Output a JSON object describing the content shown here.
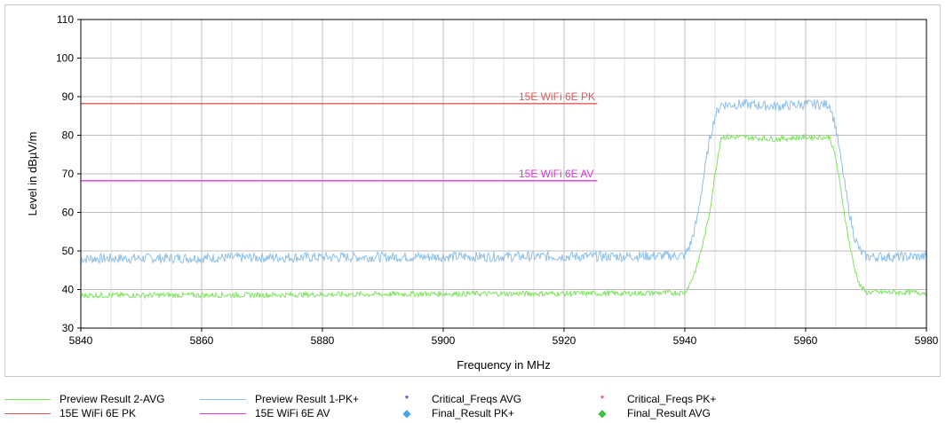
{
  "chart_data": {
    "type": "line",
    "xlabel": "Frequency in MHz",
    "ylabel": "Level in dBµV/m",
    "xlim": [
      5840,
      5980
    ],
    "ylim": [
      30,
      110
    ],
    "x_ticks": [
      "5840",
      "5860",
      "5880",
      "5900",
      "5920",
      "5940",
      "5960",
      "5980"
    ],
    "y_ticks": [
      "30",
      "40",
      "50",
      "60",
      "70",
      "80",
      "90",
      "100",
      "110"
    ],
    "grid": true,
    "legend_position": "bottom",
    "series": [
      {
        "name": "Preview Result 1-PK+",
        "color": "#8ec0ea",
        "x": [
          5840,
          5870,
          5900,
          5930,
          5940,
          5941,
          5942,
          5943,
          5944,
          5945,
          5946,
          5950,
          5955,
          5960,
          5964,
          5965,
          5966,
          5967,
          5968,
          5969,
          5970,
          5980
        ],
        "y": [
          48,
          48.3,
          48.5,
          48.6,
          48.8,
          52,
          58,
          68,
          78,
          85,
          88,
          88,
          87.5,
          88,
          88,
          82,
          72,
          62,
          54,
          50,
          48.5,
          48.5
        ]
      },
      {
        "name": "Preview Result 2-AVG",
        "color": "#7ee45e",
        "x": [
          5840,
          5870,
          5900,
          5930,
          5940,
          5941,
          5942,
          5943,
          5944,
          5945,
          5946,
          5950,
          5955,
          5960,
          5964,
          5965,
          5966,
          5967,
          5968,
          5969,
          5970,
          5980
        ],
        "y": [
          38.5,
          38.6,
          38.9,
          39,
          39.2,
          42,
          46,
          52,
          59,
          70,
          79.5,
          79.5,
          79,
          79.5,
          79.5,
          74,
          64,
          54,
          46,
          41,
          39.3,
          39.2
        ]
      },
      {
        "name": "15E WiFi 6E PK",
        "color": "#e05a5a",
        "x": [
          5840,
          5925.5
        ],
        "y": [
          88.2,
          88.2
        ]
      },
      {
        "name": "15E WiFi 6E AV",
        "color": "#d63ad6",
        "x": [
          5840,
          5925.5
        ],
        "y": [
          68.2,
          68.2
        ]
      }
    ],
    "limit_labels": [
      {
        "text": "15E WiFi 6E PK",
        "x": 5912.5,
        "y": 88.2,
        "color": "#e05a5a"
      },
      {
        "text": "15E WiFi 6E AV",
        "x": 5912.5,
        "y": 68.2,
        "color": "#d63ad6"
      }
    ]
  },
  "legend": {
    "items": [
      {
        "label": "Preview Result 2-AVG",
        "kind": "line",
        "color": "#7ee45e"
      },
      {
        "label": "15E WiFi 6E PK",
        "kind": "line",
        "color": "#e05a5a"
      },
      {
        "label": "Preview Result 1-PK+",
        "kind": "line",
        "color": "#8ec0ea"
      },
      {
        "label": "15E WiFi 6E AV",
        "kind": "line",
        "color": "#d63ad6"
      },
      {
        "label": "Critical_Freqs AVG",
        "kind": "marker",
        "symbol": "*",
        "color": "#1f2fb8"
      },
      {
        "label": "Final_Result PK+",
        "kind": "marker",
        "symbol": "◆",
        "color": "#4aa3e8"
      },
      {
        "label": "Critical_Freqs PK+",
        "kind": "marker",
        "symbol": "*",
        "color": "#e03030"
      },
      {
        "label": "Final_Result AVG",
        "kind": "marker",
        "symbol": "◆",
        "color": "#40c040"
      }
    ]
  }
}
